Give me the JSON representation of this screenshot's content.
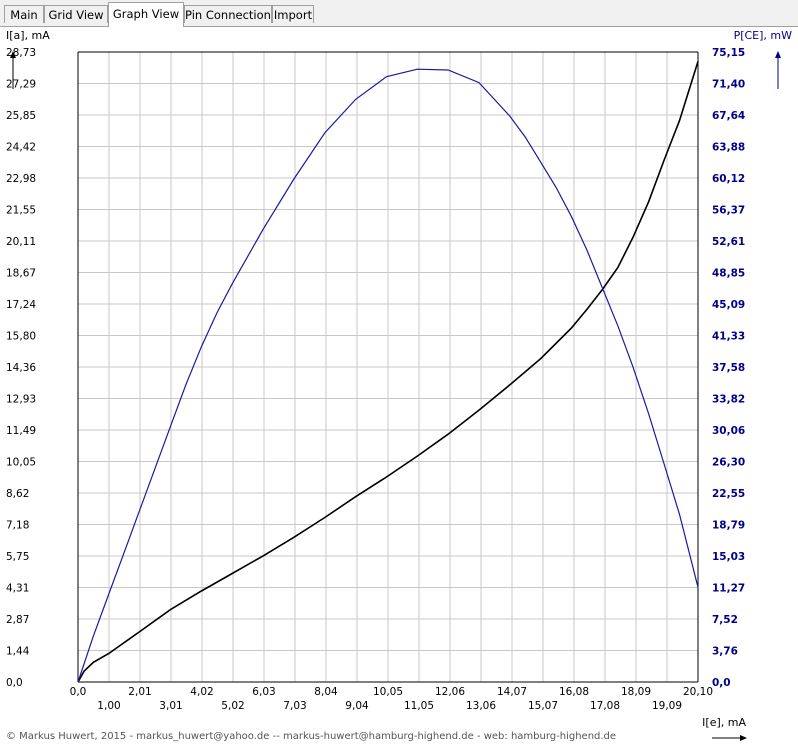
{
  "tabs": [
    {
      "label": "Main",
      "active": false
    },
    {
      "label": "Grid View",
      "active": false
    },
    {
      "label": "Graph View",
      "active": true
    },
    {
      "label": "Pin Connection",
      "active": false
    },
    {
      "label": "Import",
      "active": false
    }
  ],
  "footer_text": "© Markus Huwert, 2015  -  markus_huwert@yahoo.de  --  markus-huwert@hamburg-highend.de  -  web: hamburg-highend.de",
  "colors": {
    "left_axis": "#000000",
    "right_axis": "#00008b",
    "grid": "#c8c8c8",
    "series_current": "#000000",
    "series_power": "#1a1aa0"
  },
  "chart_data": {
    "type": "line",
    "ylabel_left": "I[a], mA",
    "ylabel_right": "P[CE], mW",
    "xlabel": "I[e], mA",
    "grid": true,
    "xlim": [
      0,
      20.1
    ],
    "ylim_left": [
      0,
      28.73
    ],
    "ylim_right": [
      0,
      75.15
    ],
    "x_ticks": [
      "0,0",
      "1,00",
      "2,01",
      "3,01",
      "4,02",
      "5,02",
      "6,03",
      "7,03",
      "8,04",
      "9,04",
      "10,05",
      "11,05",
      "12,06",
      "13,06",
      "14,07",
      "15,07",
      "16,08",
      "17,08",
      "18,09",
      "19,09",
      "20,10"
    ],
    "y_left_ticks": [
      "0,0",
      "1,44",
      "2,87",
      "4,31",
      "5,75",
      "7,18",
      "8,62",
      "10,05",
      "11,49",
      "12,93",
      "14,36",
      "15,80",
      "17,24",
      "18,67",
      "20,11",
      "21,55",
      "22,98",
      "24,42",
      "25,85",
      "27,29",
      "28,73"
    ],
    "y_right_ticks": [
      "0,0",
      "3,76",
      "7,52",
      "11,27",
      "15,03",
      "18,79",
      "22,55",
      "26,30",
      "30,06",
      "33,82",
      "37,58",
      "41,33",
      "45,09",
      "48,85",
      "52,61",
      "56,37",
      "60,12",
      "63,88",
      "67,64",
      "71,40",
      "75,15"
    ],
    "series": [
      {
        "axis": "left",
        "x": [
          0,
          0.2,
          0.5,
          1,
          2,
          3,
          4,
          5,
          6,
          7,
          8,
          9,
          10,
          11,
          12,
          13,
          14,
          15,
          16,
          16.5,
          17,
          17.5,
          18,
          18.5,
          19,
          19.5,
          20.1
        ],
        "y": [
          0,
          0.5,
          0.9,
          1.3,
          2.3,
          3.3,
          4.15,
          4.95,
          5.75,
          6.6,
          7.5,
          8.45,
          9.35,
          10.3,
          11.3,
          12.4,
          13.55,
          14.75,
          16.15,
          17.0,
          17.9,
          18.9,
          20.3,
          21.9,
          23.8,
          25.6,
          28.3
        ]
      },
      {
        "axis": "right",
        "x": [
          0,
          0.5,
          1,
          1.5,
          2,
          2.5,
          3,
          3.5,
          4,
          4.5,
          5,
          6,
          7,
          8,
          9,
          10,
          11,
          12,
          13,
          14,
          14.5,
          15,
          15.5,
          16,
          16.5,
          17,
          17.5,
          18,
          18.5,
          19,
          19.5,
          20.1
        ],
        "y": [
          0,
          5.5,
          10.5,
          15.5,
          20.5,
          25.5,
          30.5,
          35.5,
          40,
          44,
          47.5,
          54,
          60,
          65.5,
          69.5,
          72.2,
          73.1,
          73,
          71.5,
          67.5,
          65,
          62,
          59,
          55.5,
          51.5,
          47,
          42.5,
          37.5,
          32,
          26,
          20,
          11.3
        ]
      }
    ]
  }
}
